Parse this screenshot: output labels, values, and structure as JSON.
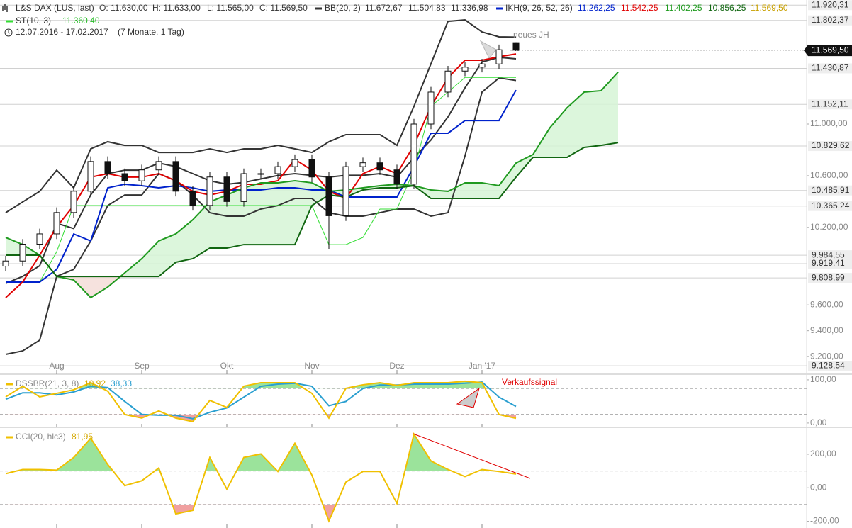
{
  "chart_data": [
    {
      "type": "candlestick",
      "title": "L&S DAX (LUS, last)",
      "ohlc_labels": [
        "O: 11.630,00",
        "H: 11.633,00",
        "L: 11.565,00",
        "C: 11.569,50"
      ],
      "period": "12.07.2016 - 17.02.2017",
      "period_length": "(7 Monate, 1 Tag)",
      "annotation": "neues JH",
      "categories": [
        null,
        null,
        null,
        "Aug",
        null,
        null,
        null,
        null,
        "Sep",
        null,
        null,
        null,
        null,
        "Okt",
        null,
        null,
        null,
        null,
        "Nov",
        null,
        null,
        null,
        null,
        "Dez",
        null,
        null,
        null,
        null,
        "Jan '17",
        null,
        null,
        null,
        null,
        null,
        null,
        null,
        null
      ],
      "ylim": [
        9080,
        11960
      ],
      "yticks": [
        {
          "value": 9200,
          "label": "9.200,00"
        },
        {
          "value": 9400,
          "label": "9.400,00"
        },
        {
          "value": 9600,
          "label": "9.600,00"
        },
        {
          "value": 10200,
          "label": "10.200,00"
        },
        {
          "value": 10600,
          "label": "10.600,00"
        },
        {
          "value": 11000,
          "label": "11.000,00"
        }
      ],
      "level_labels": [
        {
          "value": 11920.31,
          "label": "11.920,31"
        },
        {
          "value": 11802.37,
          "label": "11.802,37"
        },
        {
          "value": 11430.87,
          "label": "11.430,87"
        },
        {
          "value": 11152.11,
          "label": "11.152,11"
        },
        {
          "value": 10829.62,
          "label": "10.829,62"
        },
        {
          "value": 10485.91,
          "label": "10.485,91"
        },
        {
          "value": 10365.24,
          "label": "10.365,24"
        },
        {
          "value": 9984.55,
          "label": "9.984,55"
        },
        {
          "value": 9919.41,
          "label": "9.919,41"
        },
        {
          "value": 9808.99,
          "label": "9.808,99"
        },
        {
          "value": 9128.54,
          "label": "9.128,54"
        }
      ],
      "last_label": {
        "value": 11569.5,
        "label": "11.569,50"
      },
      "open": [
        9900,
        9940,
        10070,
        10150,
        10315,
        10480,
        10710,
        10616,
        10560,
        10645,
        10710,
        10480,
        10370,
        10590,
        10400,
        10616,
        10616,
        10670,
        10725,
        10590,
        10290,
        10670,
        10700,
        10645,
        10535,
        11000,
        11247,
        11410,
        11440,
        11465,
        11630,
        null,
        null,
        null,
        null,
        null,
        null
      ],
      "high": [
        9980,
        10110,
        10190,
        10355,
        10520,
        10750,
        10750,
        10656,
        10685,
        10750,
        10750,
        10520,
        10630,
        10630,
        10656,
        10656,
        10710,
        10765,
        10765,
        10630,
        10710,
        10740,
        10740,
        10685,
        11040,
        11287,
        11450,
        11480,
        11505,
        11615,
        11633,
        null,
        null,
        null,
        null,
        null,
        null
      ],
      "low": [
        9860,
        9900,
        10030,
        10110,
        10275,
        10440,
        10576,
        10520,
        10520,
        10605,
        10440,
        10330,
        10330,
        10360,
        10360,
        10576,
        10576,
        10630,
        10550,
        10030,
        10250,
        10630,
        10605,
        10495,
        10495,
        10960,
        11207,
        11370,
        11400,
        11425,
        11565,
        null,
        null,
        null,
        null,
        null,
        null
      ],
      "close": [
        9940,
        10070,
        10150,
        10315,
        10480,
        10710,
        10616,
        10560,
        10645,
        10710,
        10480,
        10370,
        10590,
        10400,
        10616,
        10616,
        10670,
        10725,
        10590,
        10290,
        10670,
        10700,
        10645,
        10535,
        11000,
        11247,
        11410,
        11440,
        11465,
        11575,
        11569.5,
        null,
        null,
        null,
        null,
        null,
        null
      ],
      "candle_color": "#111111",
      "indicators": [
        {
          "name": "BB(20, 2)",
          "color": "#333333",
          "lines": [
            {
              "values": [
                10314,
                10397,
                10479,
                10643,
                10506,
                10808,
                10863,
                10835,
                10835,
                10780,
                10780,
                10780,
                10808,
                10780,
                10808,
                10808,
                10835,
                10808,
                10780,
                10863,
                10918,
                10918,
                10918,
                10835,
                11137,
                11466,
                11795,
                11806,
                11713,
                11675,
                11672.67,
                null,
                null,
                null,
                null,
                null,
                null
              ],
              "value_label": "11.672,67"
            },
            {
              "values": [
                9766,
                9821,
                9903,
                10232,
                10191,
                10452,
                10616,
                10643,
                10643,
                10698,
                10671,
                10616,
                10561,
                10534,
                10548,
                10575,
                10602,
                10616,
                10602,
                10589,
                10603,
                10603,
                10616,
                10589,
                10740,
                10877,
                11055,
                11280,
                11480,
                11516,
                11504.83,
                null,
                null,
                null,
                null,
                null,
                null
              ],
              "value_label": "11.504,83"
            },
            {
              "values": [
                9217,
                9244,
                9327,
                9821,
                9875,
                10095,
                10369,
                10451,
                10451,
                10616,
                10561,
                10451,
                10314,
                10287,
                10287,
                10342,
                10369,
                10424,
                10424,
                10314,
                10287,
                10287,
                10314,
                10342,
                10342,
                10287,
                10314,
                10753,
                11247,
                11357,
                11336.98,
                null,
                null,
                null,
                null,
                null,
                null
              ],
              "value_label": "11.336,98"
            }
          ]
        },
        {
          "name": "IKH(9, 26, 52, 26)",
          "color": "#0022cc",
          "cloud_colors": [
            "#d6f5d6",
            "#f5ddd8"
          ],
          "lines": [
            {
              "color": "#0022cc",
              "values": [
                9777,
                9777,
                9777,
                9875,
                10149,
                10095,
                10506,
                10534,
                10523,
                10506,
                10523,
                10506,
                10479,
                10490,
                10490,
                10490,
                10506,
                10506,
                10490,
                10490,
                10435,
                10435,
                10435,
                10435,
                10671,
                10929,
                10929,
                11027,
                11027,
                11027,
                11262.25,
                null,
                null,
                null,
                null,
                null,
                null
              ],
              "value_label": "11.262,25"
            },
            {
              "color": "#e00000",
              "values": [
                9656,
                9777,
                9985,
                10204,
                10369,
                10589,
                10616,
                10589,
                10589,
                10616,
                10561,
                10479,
                10451,
                10479,
                10534,
                10534,
                10561,
                10726,
                10643,
                10479,
                10424,
                10616,
                10671,
                10616,
                10835,
                11137,
                11357,
                11494,
                11494,
                11521,
                11542.25,
                null,
                null,
                null,
                null,
                null,
                null
              ],
              "value_label": "11.542,25"
            },
            {
              "color": "#1f9a1f",
              "values": [
                10122,
                10067,
                9985,
                9820,
                9793,
                9656,
                9738,
                9848,
                9958,
                10095,
                10150,
                10259,
                10397,
                10451,
                10506,
                10545,
                10545,
                10561,
                10545,
                10479,
                10490,
                10506,
                10523,
                10534,
                10523,
                10490,
                10479,
                10545,
                10545,
                10523,
                10698,
                10764,
                10973,
                11126,
                11247,
                11258,
                11402.25
              ],
              "value_label": "11.402,25"
            },
            {
              "color": "#116611",
              "values": [
                9985,
                9985,
                9985,
                9820,
                9820,
                9820,
                9820,
                9820,
                9820,
                9820,
                9930,
                9958,
                10040,
                10040,
                10067,
                10067,
                10067,
                10067,
                10369,
                10451,
                10435,
                10490,
                10506,
                10506,
                10523,
                10424,
                10424,
                10424,
                10424,
                10424,
                10589,
                10742,
                10742,
                10742,
                10819,
                10835,
                10856.25
              ],
              "value_label": "10.856,25"
            },
            {
              "color": "#c8a000",
              "value_label": "11.569,50"
            }
          ]
        },
        {
          "name": "ST(10, 3)",
          "color": "#33dd33",
          "lines": [
            {
              "values": [
                9777,
                9777,
                9777,
                10012,
                10369,
                10369,
                10369,
                10369,
                10369,
                10369,
                10369,
                10369,
                10369,
                10369,
                10369,
                10369,
                10369,
                10369,
                10369,
                10067,
                10067,
                10122,
                10342,
                10342,
                10643,
                11137,
                11247,
                11360.4,
                11360.4,
                11360.4,
                11360.4,
                null,
                null,
                null,
                null,
                null,
                null
              ],
              "value_label": "11.360,40"
            }
          ]
        }
      ]
    },
    {
      "type": "line",
      "title": "DSSBR(21, 3, 8)",
      "annotation": "Verkaufssignal",
      "ylim": [
        -10,
        113
      ],
      "yticks": [
        {
          "value": 0,
          "label": "0,00"
        },
        {
          "value": 100,
          "label": "100,00"
        }
      ],
      "levels": [
        20,
        80
      ],
      "fill_colors": [
        "#9be39b",
        "#f0a0a0"
      ],
      "series": [
        {
          "color": "#f0c000",
          "values": [
            60.6,
            85.2,
            60.6,
            68.8,
            77,
            93.4,
            73.8,
            19.7,
            11.5,
            27.9,
            11.5,
            3.3,
            52.4,
            36.1,
            85.2,
            93.4,
            93.4,
            93.4,
            68.8,
            11.5,
            80.3,
            88.5,
            93.4,
            86.9,
            93.4,
            93.4,
            93.4,
            96.7,
            93.4,
            19.7,
            10.92
          ],
          "value_label": "10,92"
        },
        {
          "color": "#2a9fd0",
          "values": [
            55,
            70,
            70,
            65,
            72,
            85,
            82,
            50,
            20,
            18,
            18,
            10,
            25,
            35,
            60,
            85,
            90,
            92,
            85,
            40,
            50,
            80,
            88,
            88,
            90,
            90,
            90,
            92,
            95,
            60,
            38.33
          ],
          "value_label": "38,33"
        }
      ]
    },
    {
      "type": "line",
      "title": "CCI(20, hlc3)",
      "ylim": [
        -240,
        352
      ],
      "yticks": [
        {
          "value": -200,
          "label": "-200,00"
        },
        {
          "value": 0,
          "label": "0,00"
        },
        {
          "value": 200,
          "label": "200,00"
        }
      ],
      "levels": [
        -100,
        100
      ],
      "fill_colors": [
        "#9be39b",
        "#f0a0a0"
      ],
      "series": [
        {
          "color": "#f0c000",
          "values": [
            84,
            109,
            109,
            105,
            181,
            295,
            139,
            13,
            42,
            118,
            -156,
            -135,
            181,
            -8,
            181,
            202,
            97,
            265,
            76,
            -198,
            34,
            97,
            97,
            -93,
            320,
            160,
            109,
            67,
            109,
            97,
            81.95
          ],
          "value_label": "81,95"
        }
      ]
    }
  ]
}
